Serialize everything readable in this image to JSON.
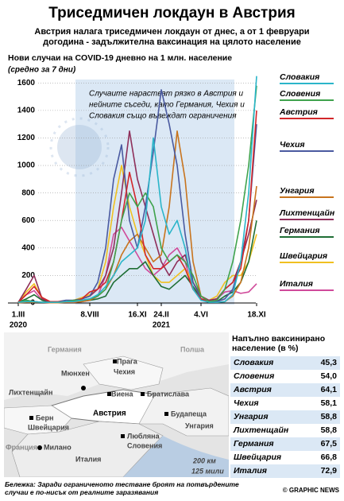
{
  "header": {
    "title": "Триседмичен локдаун в Австрия",
    "subtitle": "Австрия налага триседмичен локдаун от днес, а от 1 февруари догодина - задължителна ваксинация на цялото население"
  },
  "chart_data": {
    "type": "line",
    "y_label": "Нови случаи на COVID-19 дневно на 1 млн. население",
    "y_sublabel": "(средно за 7 дни)",
    "annotation": [
      "Случаите нарастват рязко в Австрия и",
      "нейните съседи, като Германия, Чехия и",
      "Словакия също въвеждат ограничения"
    ],
    "categories": [
      "1.III",
      null,
      null,
      null,
      null,
      null,
      null,
      null,
      null,
      "8.VIII",
      null,
      null,
      null,
      null,
      null,
      "16.XI",
      null,
      null,
      "24.II",
      null,
      null,
      null,
      null,
      "4.VI",
      null,
      null,
      null,
      null,
      null,
      null,
      "18.XI"
    ],
    "category_years": [
      "2020",
      null,
      null,
      null,
      null,
      null,
      null,
      null,
      null,
      null,
      null,
      null,
      null,
      null,
      null,
      null,
      null,
      null,
      "2021",
      null,
      null,
      null,
      null,
      null,
      null,
      null,
      null,
      null,
      null,
      null,
      null
    ],
    "ylim": [
      0,
      1700
    ],
    "yticks": [
      0,
      200,
      400,
      600,
      800,
      1000,
      1200,
      1400,
      1600
    ],
    "grid": true,
    "series": [
      {
        "name": "Словакия",
        "color": "#2bb5c9",
        "values": [
          5,
          10,
          10,
          5,
          5,
          5,
          10,
          10,
          20,
          30,
          60,
          120,
          200,
          300,
          350,
          400,
          600,
          1200,
          700,
          500,
          600,
          400,
          100,
          20,
          5,
          5,
          10,
          60,
          300,
          800,
          1650
        ]
      },
      {
        "name": "Словения",
        "color": "#3fa34d",
        "values": [
          5,
          20,
          10,
          5,
          5,
          5,
          10,
          20,
          20,
          30,
          50,
          100,
          300,
          600,
          800,
          700,
          800,
          700,
          400,
          300,
          350,
          300,
          200,
          50,
          10,
          20,
          100,
          300,
          600,
          1000,
          1580
        ]
      },
      {
        "name": "Австрия",
        "color": "#d2262a",
        "values": [
          5,
          60,
          120,
          40,
          10,
          10,
          10,
          10,
          30,
          80,
          100,
          150,
          300,
          600,
          950,
          700,
          350,
          250,
          250,
          300,
          350,
          250,
          100,
          30,
          10,
          20,
          100,
          150,
          250,
          600,
          1400
        ]
      },
      {
        "name": "Чехия",
        "color": "#4a5aa0",
        "values": [
          5,
          20,
          10,
          5,
          5,
          10,
          20,
          20,
          30,
          50,
          150,
          400,
          900,
          1150,
          600,
          400,
          700,
          1100,
          1550,
          1300,
          1000,
          500,
          150,
          30,
          10,
          10,
          30,
          100,
          300,
          600,
          1300
        ]
      },
      {
        "name": "Унгария",
        "color": "#c8741e",
        "values": [
          2,
          5,
          5,
          5,
          2,
          2,
          5,
          5,
          10,
          20,
          50,
          100,
          200,
          350,
          450,
          500,
          400,
          300,
          350,
          700,
          1250,
          900,
          300,
          50,
          10,
          5,
          10,
          50,
          150,
          400,
          850
        ]
      },
      {
        "name": "Лихтенщайн",
        "color": "#8e2f5a",
        "values": [
          5,
          100,
          200,
          30,
          5,
          5,
          5,
          20,
          30,
          50,
          100,
          200,
          400,
          800,
          1250,
          900,
          700,
          500,
          300,
          200,
          300,
          350,
          150,
          50,
          20,
          30,
          100,
          150,
          300,
          500,
          750
        ]
      },
      {
        "name": "Германия",
        "color": "#1f6e35",
        "values": [
          5,
          30,
          60,
          20,
          5,
          5,
          5,
          10,
          15,
          20,
          30,
          50,
          150,
          200,
          250,
          250,
          300,
          200,
          120,
          100,
          150,
          200,
          120,
          30,
          10,
          10,
          50,
          80,
          150,
          300,
          600
        ]
      },
      {
        "name": "Швейцария",
        "color": "#f0c020",
        "values": [
          5,
          80,
          140,
          30,
          5,
          5,
          5,
          20,
          40,
          60,
          100,
          300,
          700,
          1000,
          700,
          500,
          350,
          200,
          150,
          150,
          200,
          250,
          150,
          50,
          20,
          50,
          150,
          200,
          200,
          300,
          500
        ]
      },
      {
        "name": "Италия",
        "color": "#d04a9a",
        "values": [
          5,
          60,
          90,
          20,
          5,
          5,
          5,
          5,
          10,
          20,
          50,
          200,
          500,
          550,
          450,
          350,
          250,
          200,
          250,
          350,
          400,
          300,
          100,
          30,
          20,
          30,
          80,
          90,
          70,
          80,
          140
        ]
      }
    ]
  },
  "map": {
    "labels": [
      "Германия",
      "Полша",
      "Прага",
      "Чехия",
      "Мюнхен",
      "Виена",
      "Братислава",
      "Австрия",
      "Лихтенщайн",
      "Будапеща",
      "Унгария",
      "Берн",
      "Швейцария",
      "Любляна",
      "Словения",
      "Франция",
      "Милано",
      "Италия",
      "200 км",
      "125 мили"
    ]
  },
  "vaccination_table": {
    "title": "Напълно ваксинирано население (в %)",
    "rows": [
      [
        "Словакия",
        "45,3"
      ],
      [
        "Словения",
        "54,0"
      ],
      [
        "Австрия",
        "64,1"
      ],
      [
        "Чехия",
        "58,1"
      ],
      [
        "Унгария",
        "58,8"
      ],
      [
        "Лихтенщайн",
        "58,8"
      ],
      [
        "Германия",
        "67,5"
      ],
      [
        "Швейцария",
        "66,8"
      ],
      [
        "Италия",
        "72,9"
      ]
    ]
  },
  "footer": {
    "note": "Бележка: Заради ограниченото тестване броят на потвърдените случаи е по-нисък от реалните заразявания",
    "credit": "© GRAPHIC NEWS"
  }
}
